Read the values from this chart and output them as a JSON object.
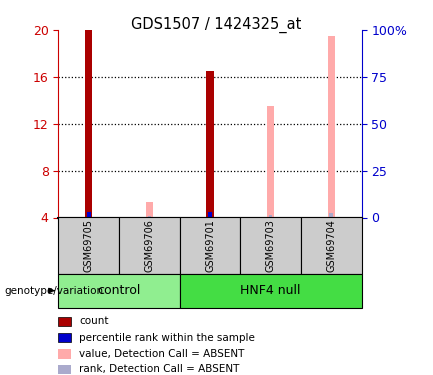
{
  "title": "GDS1507 / 1424325_at",
  "samples": [
    "GSM69705",
    "GSM69706",
    "GSM69701",
    "GSM69703",
    "GSM69704"
  ],
  "ylim_left": [
    4,
    20
  ],
  "ylim_right": [
    0,
    100
  ],
  "yticks_left": [
    4,
    8,
    12,
    16,
    20
  ],
  "yticks_right": [
    0,
    25,
    50,
    75,
    100
  ],
  "count_values": [
    20.0,
    null,
    16.5,
    null,
    null
  ],
  "rank_values": [
    4.5,
    null,
    4.5,
    null,
    null
  ],
  "absent_value_values": [
    null,
    5.3,
    null,
    13.5,
    19.5
  ],
  "absent_rank_values": [
    null,
    4.1,
    null,
    4.2,
    4.4
  ],
  "count_color": "#aa0000",
  "rank_color": "#0000cc",
  "absent_value_color": "#ffaaaa",
  "absent_rank_color": "#aaaacc",
  "axis_left_color": "#cc0000",
  "axis_right_color": "#0000cc",
  "sample_box_color": "#cccccc",
  "control_color": "#90ee90",
  "hnf4_color": "#44dd44",
  "genotype_label": "genotype/variation",
  "legend_items": [
    {
      "label": "count",
      "color": "#aa0000"
    },
    {
      "label": "percentile rank within the sample",
      "color": "#0000cc"
    },
    {
      "label": "value, Detection Call = ABSENT",
      "color": "#ffaaaa"
    },
    {
      "label": "rank, Detection Call = ABSENT",
      "color": "#aaaacc"
    }
  ]
}
